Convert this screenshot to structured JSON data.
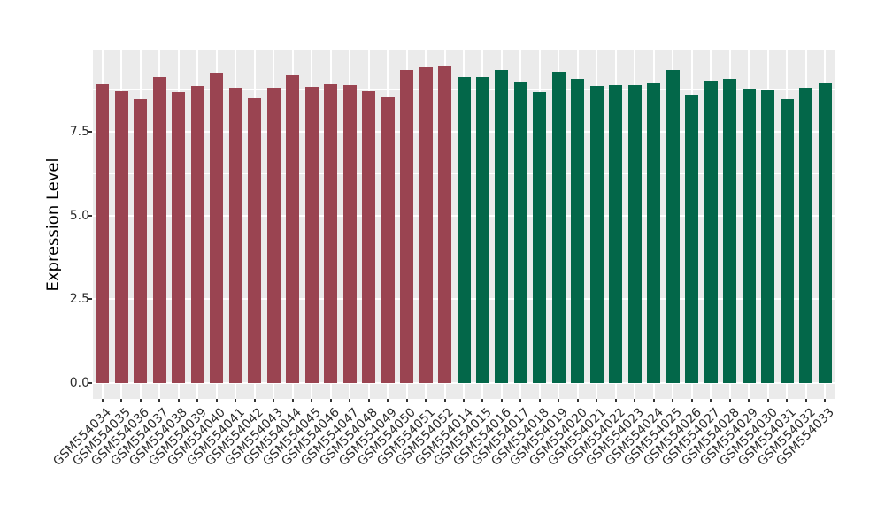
{
  "chart_data": {
    "type": "bar",
    "title": "",
    "xlabel": "",
    "ylabel": "Expression Level",
    "y_ticks": [
      "0.0",
      "2.5",
      "5.0",
      "7.5"
    ],
    "y_tick_values": [
      0,
      2.5,
      5,
      7.5
    ],
    "y_minor_gridlines": [
      1.25,
      3.75,
      6.25,
      8.75
    ],
    "ylim": [
      -0.47,
      9.93
    ],
    "grid": "white major and minor horizontal lines plus vertical category lines on grey panel",
    "legend": "none",
    "series": [
      {
        "name": "left-group",
        "color": "#9A4451",
        "categories": [
          "GSM554034",
          "GSM554035",
          "GSM554036",
          "GSM554037",
          "GSM554038",
          "GSM554039",
          "GSM554040",
          "GSM554041",
          "GSM554042",
          "GSM554043",
          "GSM554044",
          "GSM554045",
          "GSM554046",
          "GSM554047",
          "GSM554048",
          "GSM554049",
          "GSM554050",
          "GSM554051",
          "GSM554052"
        ],
        "values": [
          8.92,
          8.7,
          8.47,
          9.13,
          8.68,
          8.86,
          9.25,
          8.83,
          8.5,
          8.83,
          9.19,
          8.85,
          8.92,
          8.9,
          8.72,
          8.53,
          9.35,
          9.43,
          9.45
        ]
      },
      {
        "name": "right-group",
        "color": "#036749",
        "categories": [
          "GSM554014",
          "GSM554015",
          "GSM554016",
          "GSM554017",
          "GSM554018",
          "GSM554019",
          "GSM554020",
          "GSM554021",
          "GSM554022",
          "GSM554023",
          "GSM554024",
          "GSM554025",
          "GSM554026",
          "GSM554027",
          "GSM554028",
          "GSM554029",
          "GSM554030",
          "GSM554031",
          "GSM554032",
          "GSM554033"
        ],
        "values": [
          9.13,
          9.13,
          9.34,
          8.98,
          8.68,
          9.3,
          9.07,
          8.88,
          8.91,
          8.91,
          8.95,
          9.35,
          8.61,
          9.01,
          9.08,
          8.76,
          8.74,
          8.48,
          8.83,
          8.96
        ]
      }
    ]
  },
  "colors": {
    "background": "#FFFFFF",
    "panel_background": "#EBEBEB",
    "gridline": "#FFFFFF",
    "bar_red": "#9A4451",
    "bar_green": "#036749",
    "axis_text": "#2B2B2B",
    "tick_mark": "#333333"
  }
}
